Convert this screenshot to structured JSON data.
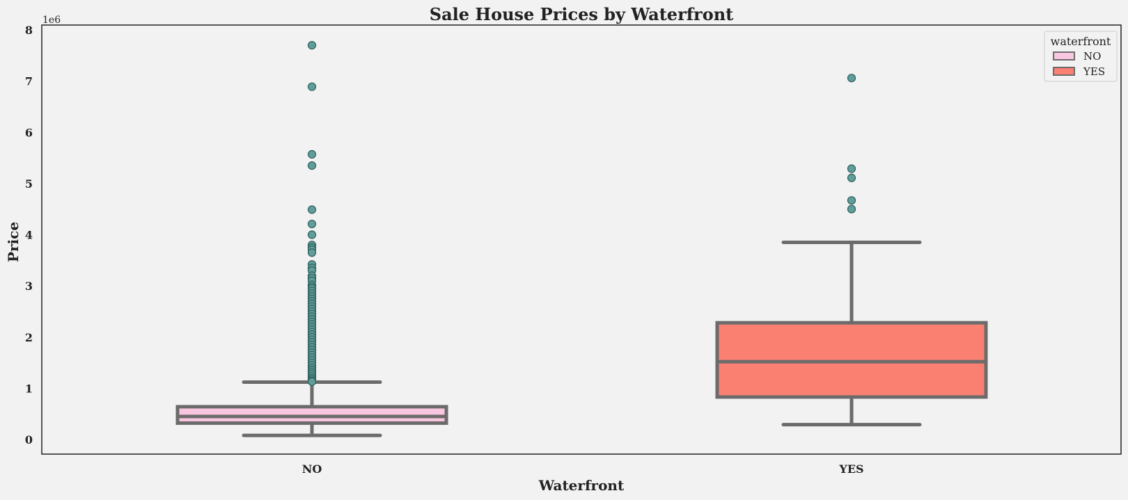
{
  "chart_data": {
    "type": "box",
    "title": "Sale House Prices by Waterfront",
    "xlabel": "Waterfront",
    "ylabel": "Price",
    "y_offset_label": "1e6",
    "ylim": [
      -0.28,
      8.1
    ],
    "yticks": [
      0,
      1,
      2,
      3,
      4,
      5,
      6,
      7,
      8
    ],
    "categories": [
      "NO",
      "YES"
    ],
    "legend": {
      "title": "waterfront",
      "placement": "top-right",
      "entries": [
        {
          "label": "NO",
          "color": "#f9c6e0"
        },
        {
          "label": "YES",
          "color": "#fa8072"
        }
      ]
    },
    "grid": false,
    "series": [
      {
        "category": "NO",
        "color": "#f9c6e0",
        "whisker_low": 0.08,
        "q1": 0.32,
        "median": 0.45,
        "q3": 0.64,
        "whisker_high": 1.12,
        "outliers": [
          7.7,
          6.89,
          5.57,
          5.35,
          4.49,
          4.21,
          4.0,
          3.8,
          3.75,
          3.71,
          3.65,
          3.42,
          3.35,
          3.3,
          3.2,
          3.15,
          3.1,
          3.02,
          2.98,
          2.95,
          2.9,
          2.85,
          2.8,
          2.75,
          2.7,
          2.65,
          2.6,
          2.55,
          2.5,
          2.45,
          2.4,
          2.35,
          2.3,
          2.25,
          2.2,
          2.15,
          2.1,
          2.05,
          2.0,
          1.95,
          1.9,
          1.85,
          1.8,
          1.75,
          1.7,
          1.65,
          1.6,
          1.55,
          1.5,
          1.45,
          1.4,
          1.36,
          1.32,
          1.28,
          1.24,
          1.2,
          1.17,
          1.14,
          1.13
        ]
      },
      {
        "category": "YES",
        "color": "#fa8072",
        "whisker_low": 0.29,
        "q1": 0.83,
        "median": 1.52,
        "q3": 2.28,
        "whisker_high": 3.85,
        "outliers": [
          7.06,
          5.29,
          5.11,
          4.67,
          4.5
        ]
      }
    ]
  },
  "colors": {
    "background": "#f2f2f2",
    "box_edge": "#6b6b6b",
    "outlier_fill": "#5f9e9a",
    "outlier_edge": "#2f5f5c",
    "axis": "#222222",
    "text": "#222222"
  }
}
